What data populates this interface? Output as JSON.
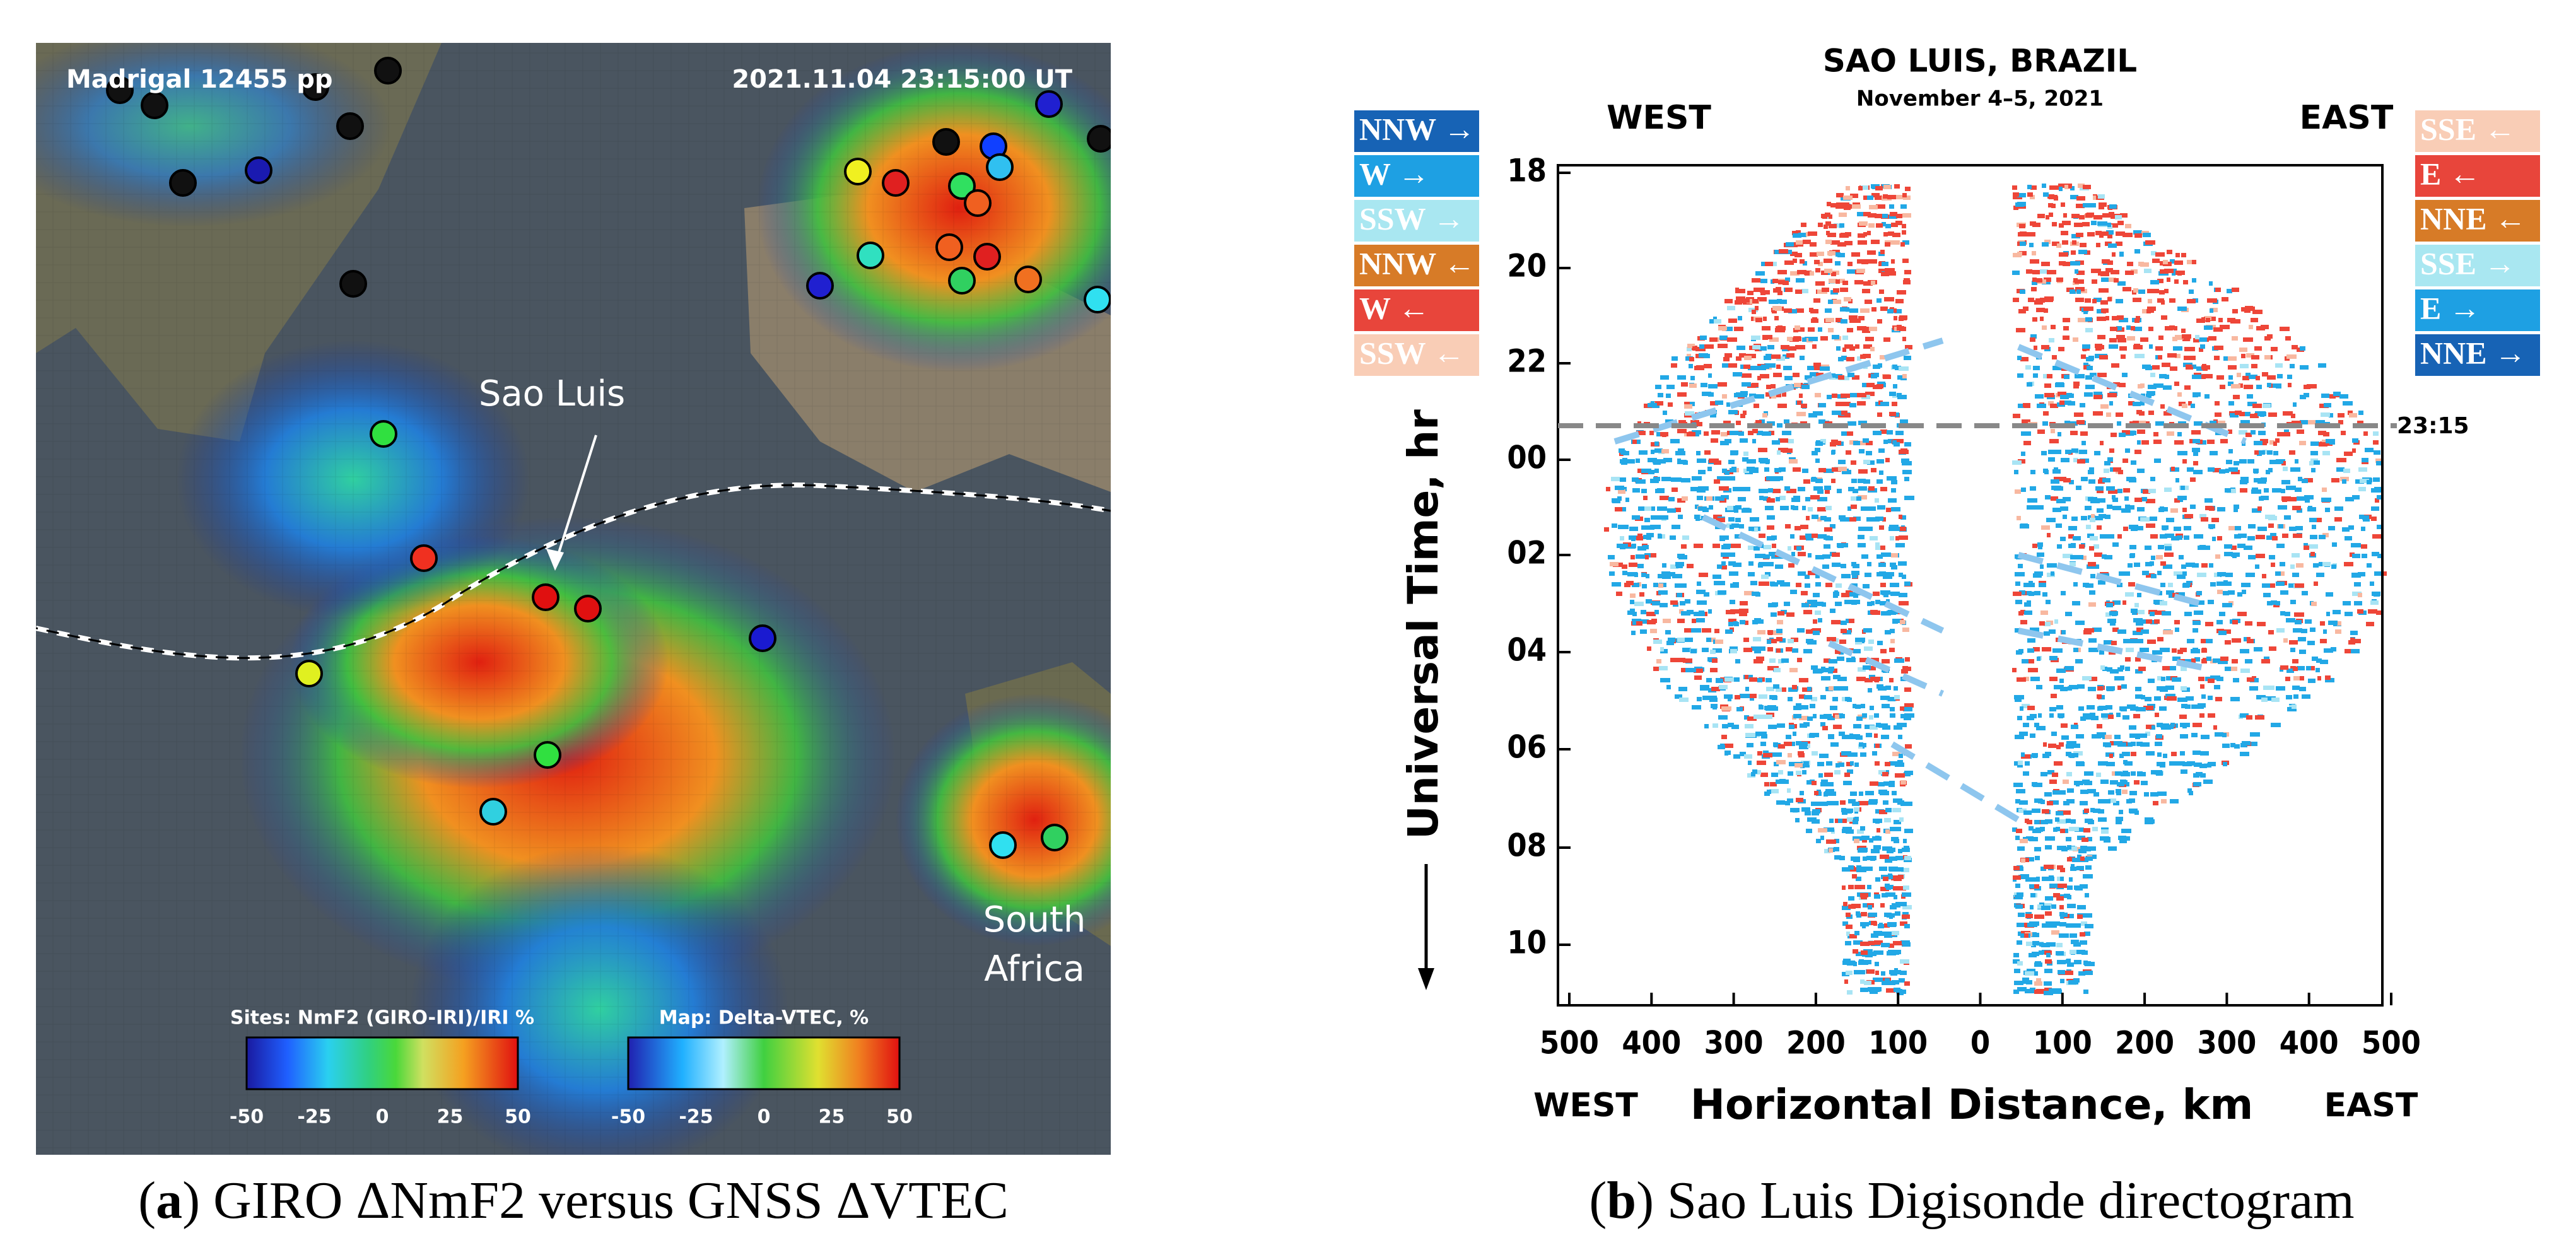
{
  "panel_a": {
    "top_left": "Madrigal 12455 pp",
    "top_right": "2021.11.04 23:15:00 UT",
    "site_label": "Sao Luis",
    "region_label": [
      "South",
      "Africa"
    ],
    "colorbar_sites": {
      "title": "Sites: NmF2 (GIRO-IRI)/IRI %",
      "ticks": [
        "-50",
        "-25",
        "0",
        "25",
        "50"
      ]
    },
    "colorbar_map": {
      "title": "Map: Delta-VTEC, %",
      "ticks": [
        "-50",
        "-25",
        "0",
        "25",
        "50"
      ]
    },
    "caption": [
      "(",
      "a",
      ") GIRO ΔNmF2 versus GNSS ΔVTEC"
    ]
  },
  "panel_b": {
    "title": "SAO LUIS, BRAZIL",
    "subtitle": "November 4–5, 2021",
    "top_west": "WEST",
    "top_east": "EAST",
    "bottom_west": "WEST",
    "bottom_east": "EAST",
    "legend_left": [
      {
        "label": "NNW →",
        "color": "#1763b5"
      },
      {
        "label": "W →",
        "color": "#1ea0e3"
      },
      {
        "label": "SSW →",
        "color": "#a9e7f1"
      },
      {
        "label": "NNW ←",
        "color": "#d77b27"
      },
      {
        "label": "W ←",
        "color": "#e8453b"
      },
      {
        "label": "SSW ←",
        "color": "#f9cdb6"
      }
    ],
    "legend_right": [
      {
        "label": "SSE ←",
        "color": "#f9cdb6"
      },
      {
        "label": "E ←",
        "color": "#e8453b"
      },
      {
        "label": "NNE ←",
        "color": "#d77b27"
      },
      {
        "label": "SSE →",
        "color": "#a9e7f1"
      },
      {
        "label": "E →",
        "color": "#1ea0e3"
      },
      {
        "label": "NNE →",
        "color": "#1763b5"
      }
    ],
    "y_label": "Universal Time, hr",
    "y_ticks": [
      "18",
      "20",
      "22",
      "00",
      "02",
      "04",
      "06",
      "08",
      "10"
    ],
    "x_label": "Horizontal Distance, km",
    "x_ticks": [
      "500",
      "400",
      "300",
      "200",
      "100",
      "0",
      "100",
      "200",
      "300",
      "400",
      "500"
    ],
    "marker_label": "23:15",
    "caption": [
      "(",
      "b",
      ") Sao Luis Digisonde directogram"
    ]
  }
}
